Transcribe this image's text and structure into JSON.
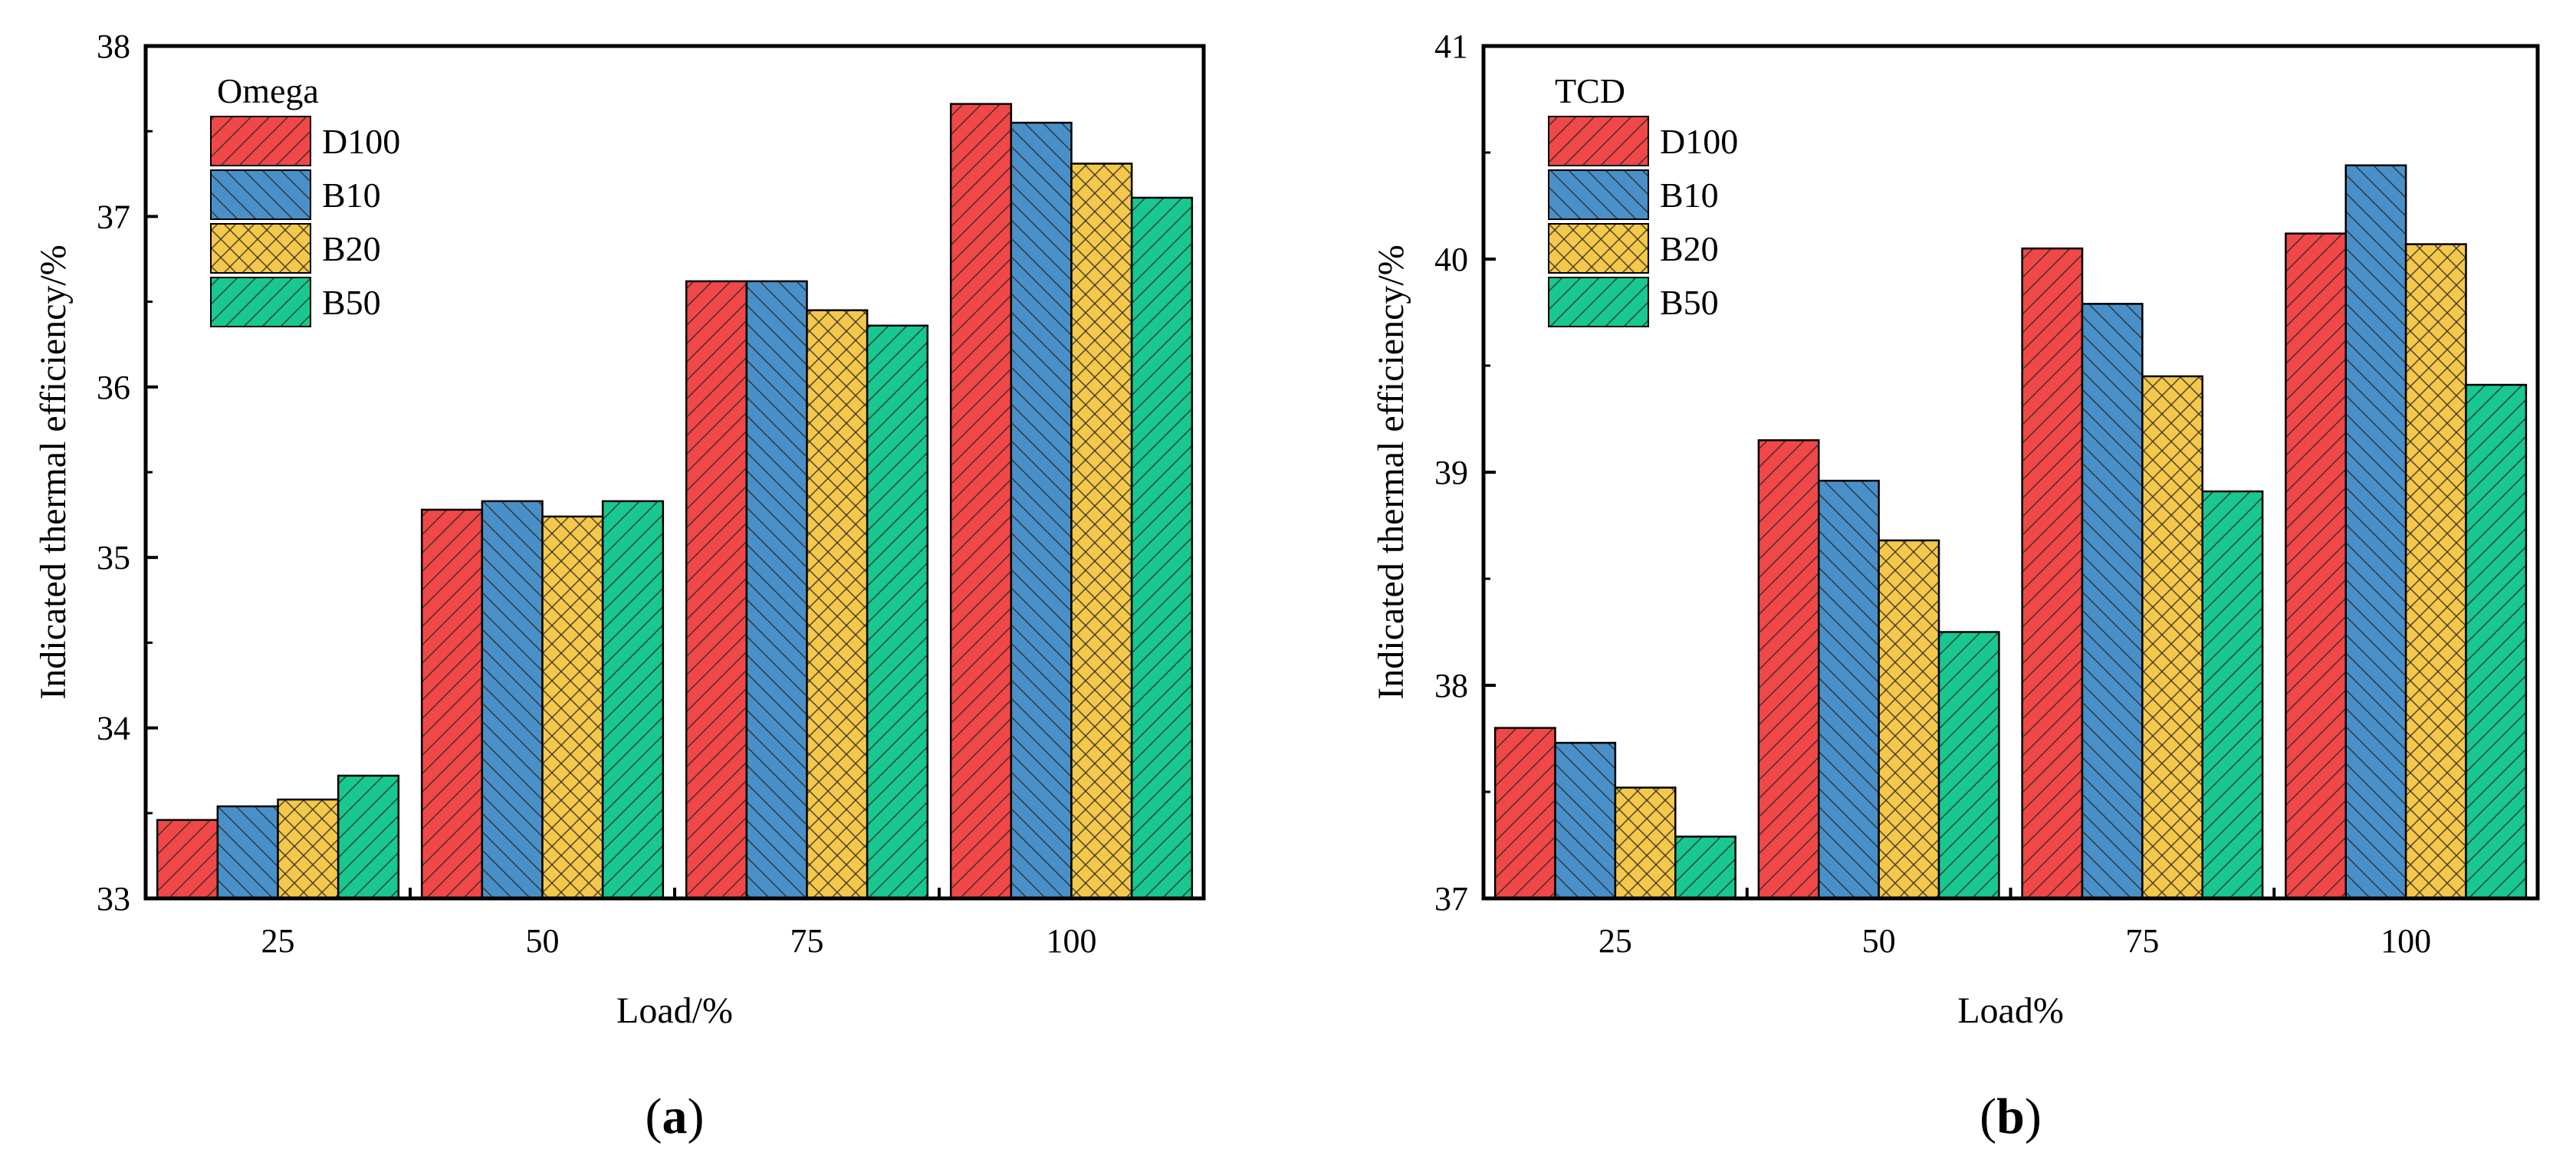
{
  "colors": {
    "D100": "#f04848",
    "B10": "#4a90c8",
    "B20": "#f4c84a",
    "B50": "#18c890"
  },
  "patterns": {
    "D100": "forward-hatch",
    "B10": "back-hatch",
    "B20": "cross-hatch",
    "B50": "forward-hatch"
  },
  "chart_data": [
    {
      "type": "bar",
      "panel_label": "a",
      "legend_title": "Omega",
      "xlabel": "Load/%",
      "ylabel": "Indicated thermal efficiency/%",
      "categories": [
        "25",
        "50",
        "75",
        "100"
      ],
      "ylim": [
        33,
        38
      ],
      "yticks": [
        "33",
        "34",
        "35",
        "36",
        "37",
        "38"
      ],
      "legend_position": "top-left",
      "series": [
        {
          "name": "D100",
          "values": [
            33.46,
            35.28,
            36.62,
            37.66
          ]
        },
        {
          "name": "B10",
          "values": [
            33.54,
            35.33,
            36.62,
            37.55
          ]
        },
        {
          "name": "B20",
          "values": [
            33.58,
            35.24,
            36.45,
            37.31
          ]
        },
        {
          "name": "B50",
          "values": [
            33.72,
            35.33,
            36.36,
            37.11
          ]
        }
      ]
    },
    {
      "type": "bar",
      "panel_label": "b",
      "legend_title": "TCD",
      "xlabel": "Load%",
      "ylabel": "Indicated thermal efficiency/%",
      "categories": [
        "25",
        "50",
        "75",
        "100"
      ],
      "ylim": [
        37,
        41
      ],
      "yticks": [
        "37",
        "38",
        "39",
        "40",
        "41"
      ],
      "legend_position": "top-left",
      "series": [
        {
          "name": "D100",
          "values": [
            37.8,
            39.15,
            40.05,
            40.12
          ]
        },
        {
          "name": "B10",
          "values": [
            37.73,
            38.96,
            39.79,
            40.44
          ]
        },
        {
          "name": "B20",
          "values": [
            37.52,
            38.68,
            39.45,
            40.07
          ]
        },
        {
          "name": "B50",
          "values": [
            37.29,
            38.25,
            38.91,
            39.41
          ]
        }
      ]
    }
  ]
}
